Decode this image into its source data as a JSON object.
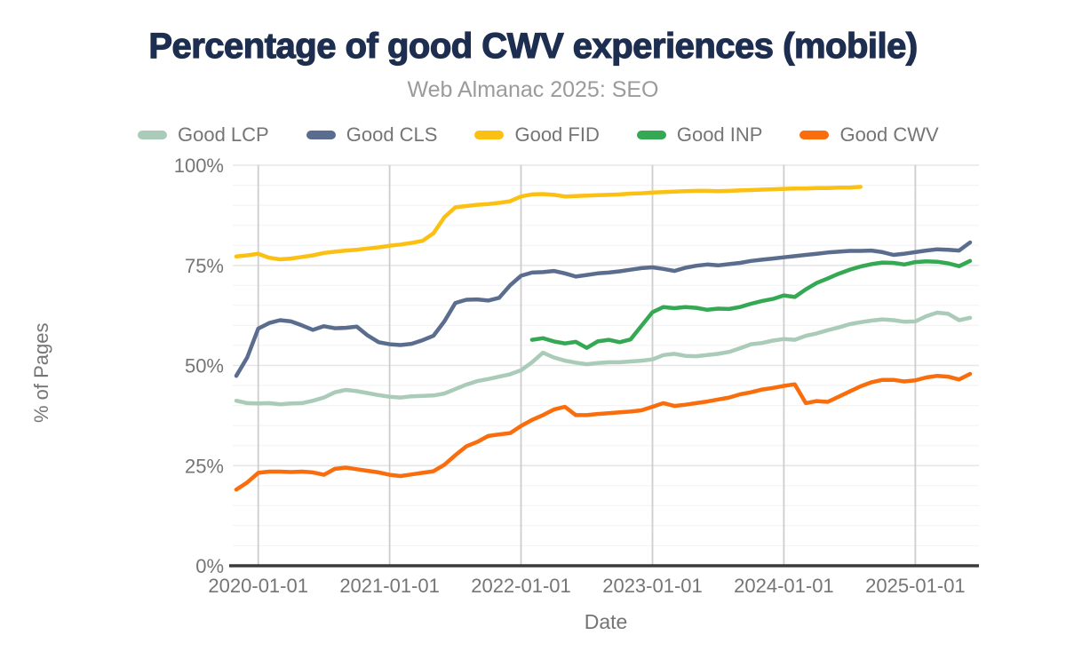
{
  "chart_data": {
    "type": "line",
    "title": "Percentage of good CWV experiences (mobile)",
    "subtitle": "Web Almanac 2025: SEO",
    "xlabel": "Date",
    "ylabel": "% of Pages",
    "legend_position": "top",
    "grid": {
      "minor_step_pct": 5,
      "major_step_pct": 25,
      "vertical_at_year_ticks": true
    },
    "ylim": [
      0,
      100
    ],
    "y_ticks": [
      "0%",
      "25%",
      "50%",
      "75%",
      "100%"
    ],
    "y_tick_values": [
      0,
      25,
      50,
      75,
      100
    ],
    "x_ticks": [
      "2020-01-01",
      "2021-01-01",
      "2022-01-01",
      "2023-01-01",
      "2024-01-01",
      "2025-01-01"
    ],
    "x_start_month": "2019-11",
    "x_end_month": "2025-06",
    "months_count": 68,
    "x_tick_month_indices": [
      2,
      14,
      26,
      38,
      50,
      62
    ],
    "axis_color": "#3b3b3b",
    "tick_label_color": "#757575",
    "gridline_color_vertical": "#cdcdcd",
    "gridline_color_major": "#e7e7e7",
    "gridline_color_minor": "#f4f4f4",
    "title_color": "#1d2e50",
    "subtitle_color": "#9b9b9b",
    "series": [
      {
        "name": "Good LCP",
        "color": "#a9cbb7",
        "values": [
          41.2,
          40.6,
          40.5,
          40.6,
          40.3,
          40.5,
          40.6,
          41.2,
          42.0,
          43.3,
          43.9,
          43.6,
          43.1,
          42.6,
          42.2,
          42.0,
          42.3,
          42.4,
          42.5,
          43.0,
          44.1,
          45.2,
          46.1,
          46.6,
          47.2,
          47.8,
          48.8,
          50.8,
          53.2,
          52.0,
          51.2,
          50.7,
          50.3,
          50.6,
          50.8,
          50.8,
          51.0,
          51.2,
          51.5,
          52.6,
          52.9,
          52.4,
          52.3,
          52.6,
          52.9,
          53.4,
          54.3,
          55.3,
          55.6,
          56.2,
          56.6,
          56.4,
          57.4,
          58.0,
          58.8,
          59.5,
          60.3,
          60.8,
          61.2,
          61.5,
          61.3,
          60.9,
          61.0,
          62.3,
          63.2,
          62.9,
          61.3,
          61.9
        ]
      },
      {
        "name": "Good CLS",
        "color": "#5a6d8e",
        "values": [
          47.4,
          52.0,
          59.2,
          60.6,
          61.3,
          61.0,
          60.0,
          58.9,
          59.8,
          59.3,
          59.4,
          59.7,
          57.5,
          55.8,
          55.3,
          55.1,
          55.4,
          56.3,
          57.4,
          61.0,
          65.6,
          66.4,
          66.5,
          66.2,
          66.9,
          70.0,
          72.4,
          73.2,
          73.3,
          73.6,
          73.0,
          72.2,
          72.6,
          73.0,
          73.2,
          73.5,
          73.9,
          74.3,
          74.5,
          74.1,
          73.6,
          74.4,
          74.9,
          75.2,
          75.0,
          75.3,
          75.6,
          76.1,
          76.4,
          76.7,
          77.0,
          77.3,
          77.6,
          77.9,
          78.2,
          78.4,
          78.6,
          78.6,
          78.7,
          78.3,
          77.6,
          77.9,
          78.3,
          78.7,
          79.0,
          78.9,
          78.7,
          80.7
        ]
      },
      {
        "name": "Good FID",
        "color": "#fcc013",
        "values": [
          77.2,
          77.5,
          77.9,
          76.9,
          76.5,
          76.7,
          77.1,
          77.5,
          78.1,
          78.4,
          78.7,
          78.9,
          79.2,
          79.5,
          79.9,
          80.2,
          80.6,
          81.1,
          83.0,
          87.0,
          89.5,
          89.8,
          90.1,
          90.3,
          90.6,
          91.0,
          92.2,
          92.7,
          92.8,
          92.6,
          92.2,
          92.3,
          92.4,
          92.5,
          92.6,
          92.7,
          92.9,
          93.0,
          93.2,
          93.3,
          93.4,
          93.5,
          93.6,
          93.6,
          93.5,
          93.6,
          93.7,
          93.8,
          93.9,
          94.0,
          94.1,
          94.2,
          94.2,
          94.3,
          94.3,
          94.4,
          94.4,
          94.6,
          null,
          null,
          null,
          null,
          null,
          null,
          null,
          null,
          null,
          null
        ]
      },
      {
        "name": "Good INP",
        "color": "#34a853",
        "values": [
          null,
          null,
          null,
          null,
          null,
          null,
          null,
          null,
          null,
          null,
          null,
          null,
          null,
          null,
          null,
          null,
          null,
          null,
          null,
          null,
          null,
          null,
          null,
          null,
          null,
          null,
          null,
          56.4,
          56.8,
          56.0,
          55.5,
          55.9,
          54.4,
          56.0,
          56.4,
          55.8,
          56.5,
          59.9,
          63.3,
          64.6,
          64.3,
          64.6,
          64.4,
          63.9,
          64.2,
          64.1,
          64.6,
          65.4,
          66.1,
          66.6,
          67.5,
          67.1,
          69.0,
          70.6,
          71.7,
          72.9,
          73.9,
          74.7,
          75.3,
          75.7,
          75.6,
          75.2,
          75.8,
          76.0,
          75.9,
          75.5,
          74.8,
          76.1
        ]
      },
      {
        "name": "Good CWV",
        "color": "#fa6d0d",
        "values": [
          19.0,
          20.8,
          23.2,
          23.5,
          23.5,
          23.4,
          23.5,
          23.3,
          22.7,
          24.2,
          24.5,
          24.1,
          23.7,
          23.3,
          22.7,
          22.4,
          22.8,
          23.2,
          23.6,
          25.2,
          27.6,
          29.8,
          30.9,
          32.4,
          32.8,
          33.1,
          34.9,
          36.4,
          37.6,
          39.0,
          39.7,
          37.6,
          37.6,
          37.9,
          38.1,
          38.3,
          38.5,
          38.8,
          39.7,
          40.6,
          39.9,
          40.2,
          40.6,
          41.0,
          41.5,
          42.0,
          42.8,
          43.3,
          44.0,
          44.4,
          44.9,
          45.3,
          40.6,
          41.1,
          40.9,
          42.2,
          43.5,
          44.8,
          45.8,
          46.4,
          46.4,
          46.0,
          46.3,
          47.0,
          47.4,
          47.2,
          46.5,
          47.9
        ]
      }
    ]
  }
}
